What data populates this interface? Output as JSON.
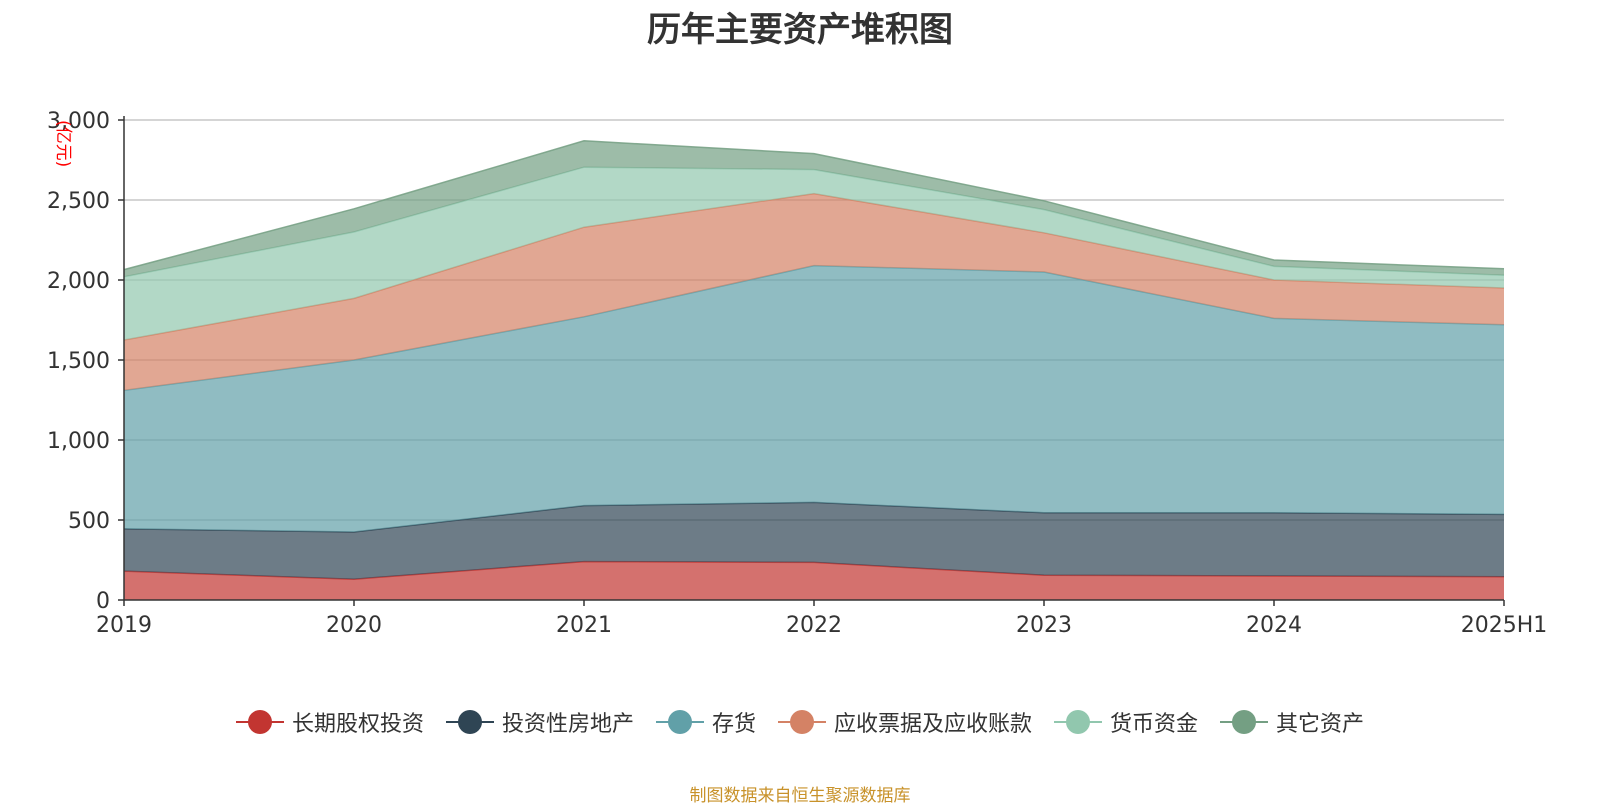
{
  "chart_data": {
    "type": "area",
    "stacked": true,
    "title": "历年主要资产堆积图",
    "unit_label": "(亿元)",
    "x": [
      "2019",
      "2020",
      "2021",
      "2022",
      "2023",
      "2024",
      "2025H1"
    ],
    "ylim": [
      0,
      3000
    ],
    "yticks": [
      "0",
      "500",
      "1,000",
      "1,500",
      "2,000",
      "2,500",
      "3,000"
    ],
    "ytick_values": [
      0,
      500,
      1000,
      1500,
      2000,
      2500,
      3000
    ],
    "grid": true,
    "legend_position": "bottom",
    "series": [
      {
        "name": "长期股权投资",
        "color": "#c23531",
        "values": [
          180,
          130,
          240,
          235,
          155,
          150,
          145
        ]
      },
      {
        "name": "投资性房地产",
        "color": "#2f4554",
        "values": [
          265,
          295,
          350,
          375,
          390,
          395,
          390
        ]
      },
      {
        "name": "存货",
        "color": "#61a0a8",
        "values": [
          865,
          1075,
          1180,
          1480,
          1505,
          1215,
          1185
        ]
      },
      {
        "name": "应收票据及应收账款",
        "color": "#d48265",
        "values": [
          315,
          385,
          560,
          450,
          245,
          240,
          230
        ]
      },
      {
        "name": "货币资金",
        "color": "#91c7ae",
        "values": [
          395,
          415,
          375,
          150,
          145,
          85,
          80
        ]
      },
      {
        "name": "其它资产",
        "color": "#749f83",
        "values": [
          45,
          145,
          165,
          100,
          55,
          40,
          40
        ]
      }
    ]
  },
  "footer": {
    "source": "制图数据来自恒生聚源数据库"
  }
}
